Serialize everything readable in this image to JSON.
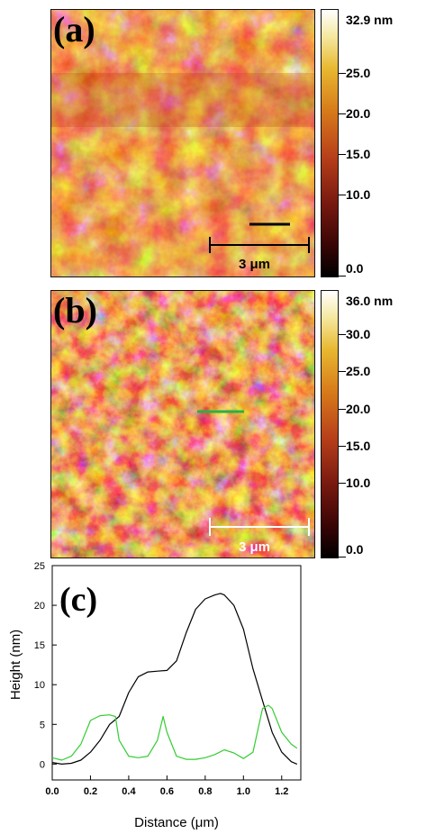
{
  "panel_a": {
    "label": "(a)",
    "scale_bar_label": "3 μm",
    "colorbar": {
      "max_label": "32.9 nm",
      "ticks": [
        "25.0",
        "20.0",
        "15.0",
        "10.0",
        "0.0"
      ],
      "max": 32.9
    }
  },
  "panel_b": {
    "label": "(b)",
    "scale_bar_label": "3 μm",
    "colorbar": {
      "max_label": "36.0 nm",
      "ticks": [
        "30.0",
        "25.0",
        "20.0",
        "15.0",
        "10.0",
        "0.0"
      ],
      "max": 36.0
    }
  },
  "colors": {
    "black_profile": "#000000",
    "green_profile": "#33cc33",
    "afm_dark": "#1a0000",
    "afm_mid": "#c0401a",
    "afm_bright": "#ffffff"
  },
  "chart_data": {
    "type": "line",
    "label": "(c)",
    "xlabel": "Distance (μm)",
    "ylabel": "Height (nm)",
    "xlim": [
      0.0,
      1.3
    ],
    "ylim": [
      -2,
      25
    ],
    "xticks": [
      "0.0",
      "0.2",
      "0.4",
      "0.6",
      "0.8",
      "1.0",
      "1.2"
    ],
    "yticks": [
      "0",
      "5",
      "10",
      "15",
      "20",
      "25"
    ],
    "series": [
      {
        "color": "#000000",
        "x": [
          0.0,
          0.05,
          0.1,
          0.15,
          0.2,
          0.25,
          0.3,
          0.35,
          0.4,
          0.45,
          0.5,
          0.55,
          0.6,
          0.65,
          0.7,
          0.75,
          0.8,
          0.85,
          0.88,
          0.9,
          0.95,
          1.0,
          1.05,
          1.1,
          1.15,
          1.2,
          1.25,
          1.28
        ],
        "y": [
          0.2,
          0.0,
          0.1,
          0.5,
          1.5,
          3.0,
          5.0,
          6.0,
          9.0,
          11.0,
          11.6,
          11.7,
          11.8,
          13.0,
          16.5,
          19.5,
          20.8,
          21.3,
          21.5,
          21.3,
          20.0,
          17.0,
          12.0,
          8.0,
          4.0,
          1.5,
          0.3,
          0.0
        ]
      },
      {
        "color": "#33cc33",
        "x": [
          0.0,
          0.05,
          0.1,
          0.15,
          0.2,
          0.25,
          0.3,
          0.33,
          0.35,
          0.4,
          0.45,
          0.5,
          0.55,
          0.58,
          0.6,
          0.65,
          0.7,
          0.75,
          0.8,
          0.85,
          0.9,
          0.95,
          1.0,
          1.05,
          1.1,
          1.13,
          1.15,
          1.2,
          1.25,
          1.28
        ],
        "y": [
          0.8,
          0.5,
          1.0,
          2.5,
          5.5,
          6.1,
          6.2,
          6.0,
          3.0,
          1.0,
          0.8,
          1.0,
          3.0,
          6.0,
          4.0,
          1.0,
          0.6,
          0.6,
          0.8,
          1.2,
          1.8,
          1.4,
          0.7,
          1.5,
          7.0,
          7.4,
          7.0,
          4.0,
          2.5,
          2.0
        ]
      }
    ]
  }
}
